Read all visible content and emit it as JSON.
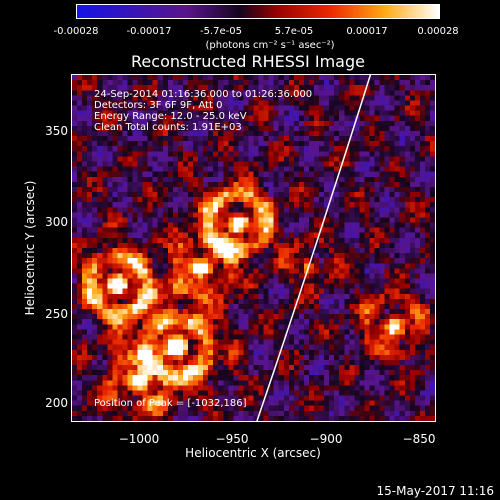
{
  "colorbar": {
    "ticks": [
      "-0.00028",
      "-0.00017",
      "-5.7e-05",
      "5.7e-05",
      "0.00017",
      "0.00028"
    ],
    "units": "(photons cm⁻² s⁻¹ asec⁻²)"
  },
  "title": "Reconstructed RHESSI Image",
  "annotation": {
    "time_range": "24-Sep-2014 01:16:36.000 to 01:26:36.000",
    "detectors": "Detectors: 3F 6F 9F, Att 0",
    "energy": "Energy Range: 12.0 - 25.0 keV",
    "clean": "Clean     Total counts: 1.91E+03",
    "peak": "Position of Peak = [-1032,186]"
  },
  "axes": {
    "xlabel": "Heliocentric X (arcsec)",
    "ylabel": "Heliocentric Y (arcsec)",
    "xticks": [
      "−1000",
      "−950",
      "−900",
      "−850"
    ],
    "yticks": [
      "350",
      "300",
      "250",
      "200"
    ]
  },
  "footer": "15-May-2017 11:16",
  "chart_data": {
    "type": "heatmap",
    "title": "Reconstructed RHESSI Image",
    "xlabel": "Heliocentric X (arcsec)",
    "ylabel": "Heliocentric Y (arcsec)",
    "x_range": [
      -1037,
      -839
    ],
    "y_range": [
      188,
      378
    ],
    "xticks": [
      -1000,
      -950,
      -900,
      -850
    ],
    "yticks": [
      200,
      250,
      300,
      350
    ],
    "color_range": [
      -0.00028,
      0.00028
    ],
    "colorbar_ticks": [
      -0.00028,
      -0.00017,
      -5.7e-05,
      5.7e-05,
      0.00017,
      0.00028
    ],
    "colormap": "blue-purple-red-yellow-white",
    "peak_position": [
      -1032,
      186
    ],
    "limb_line": true
  }
}
